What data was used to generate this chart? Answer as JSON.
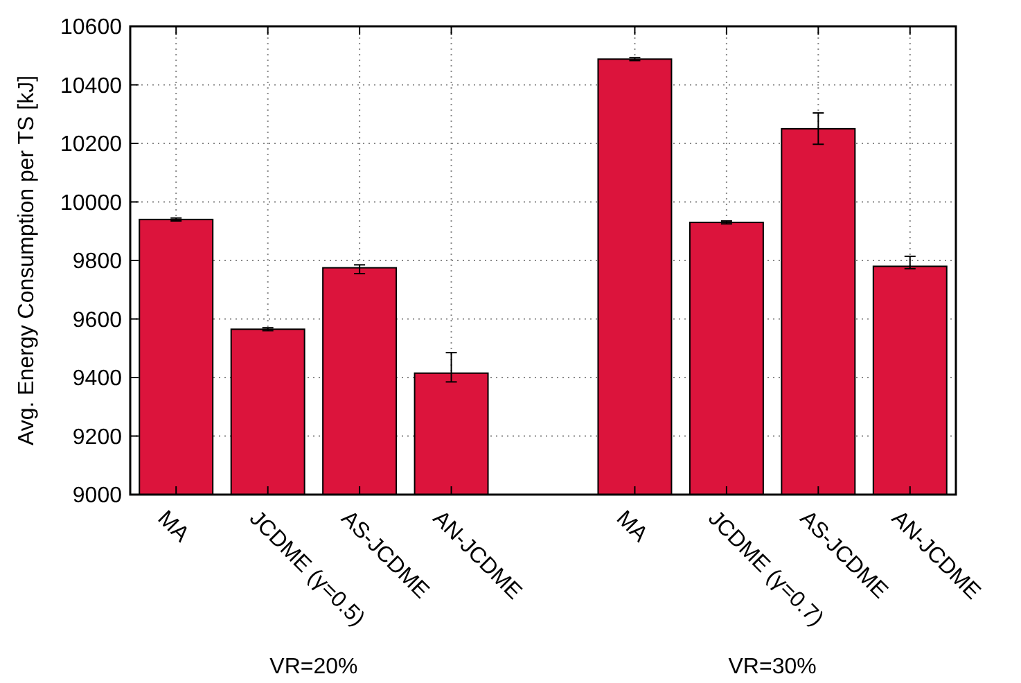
{
  "chart_data": {
    "type": "bar",
    "ylabel": "Avg. Energy Consumption per TS [kJ]",
    "categories": [
      "MA",
      "JCDME (γ=0.5)",
      "AS-JCDME",
      "AN-JCDME",
      null,
      "MA",
      "JCDME (γ=0.7)",
      "AS-JCDME",
      "AN-JCDME"
    ],
    "values": [
      9940,
      9565,
      9775,
      9415,
      null,
      10488,
      9930,
      10250,
      9780
    ],
    "errors": [
      5,
      5,
      [
        9755,
        9785
      ],
      [
        9385,
        9485
      ],
      null,
      5,
      5,
      [
        10197,
        10304
      ],
      [
        9772,
        9814
      ]
    ],
    "color": "#dc143c",
    "ylim": [
      9000,
      10600
    ],
    "yticks": [
      9000,
      9200,
      9400,
      9600,
      9800,
      10000,
      10200,
      10400,
      10600
    ],
    "grid": true,
    "annotations": [
      "VR=20%",
      "VR=30%"
    ]
  }
}
